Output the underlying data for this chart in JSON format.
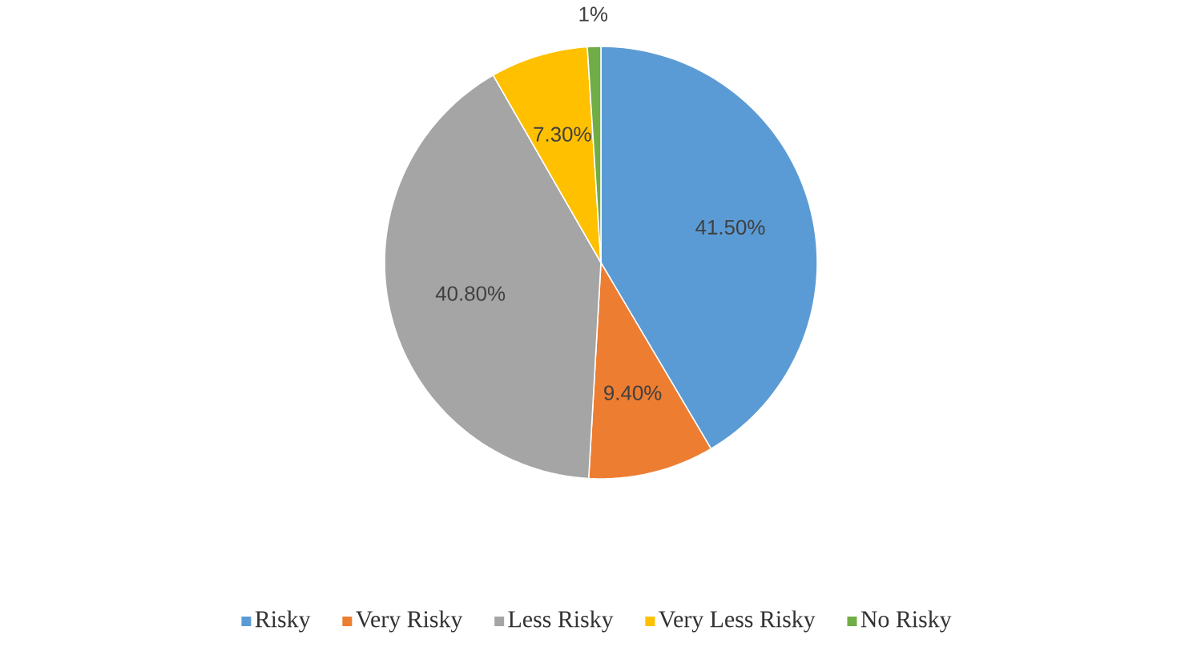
{
  "chart_data": {
    "type": "pie",
    "categories": [
      "Risky",
      "Very Risky",
      "Less Risky",
      "Very Less Risky",
      "No Risky"
    ],
    "values": [
      41.5,
      9.4,
      40.8,
      7.3,
      1
    ],
    "colors": [
      "#5b9bd5",
      "#ed7d31",
      "#a5a5a5",
      "#ffc000",
      "#70ad47"
    ],
    "value_labels": [
      "41.50%",
      "9.40%",
      "40.80%",
      "7.30%",
      "1%"
    ],
    "legend": "bottom"
  }
}
